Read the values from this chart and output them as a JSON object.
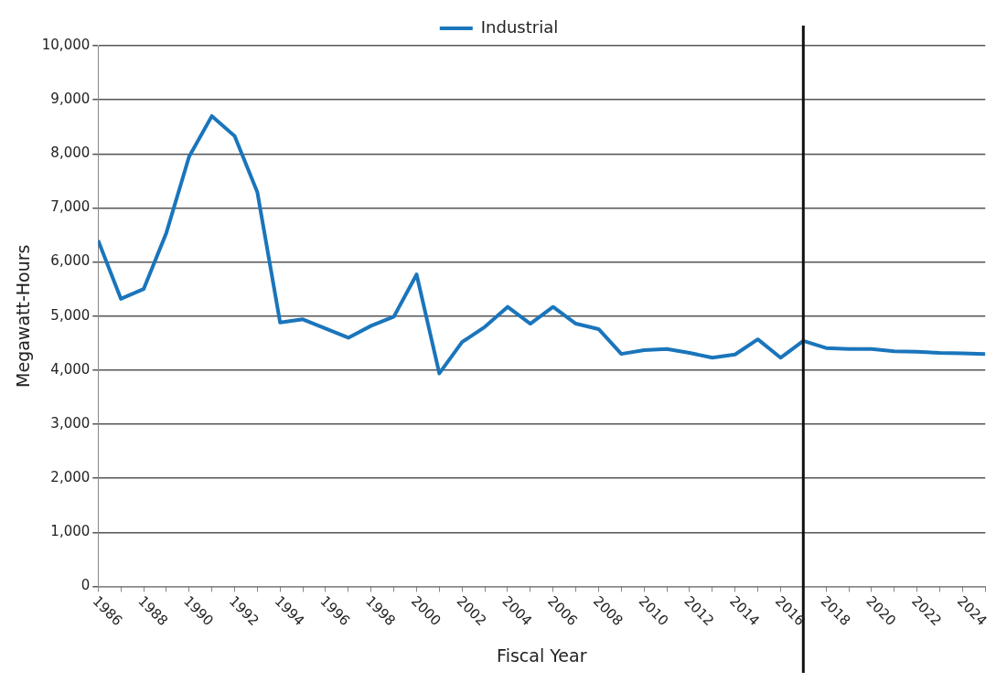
{
  "chart_data": {
    "type": "line",
    "xlabel": "Fiscal Year",
    "ylabel": "Megawatt-Hours",
    "x": [
      1986,
      1987,
      1988,
      1989,
      1990,
      1991,
      1992,
      1993,
      1994,
      1995,
      1996,
      1997,
      1998,
      1999,
      2000,
      2001,
      2002,
      2003,
      2004,
      2005,
      2006,
      2007,
      2008,
      2009,
      2010,
      2011,
      2012,
      2013,
      2014,
      2015,
      2016,
      2017,
      2018,
      2019,
      2020,
      2021,
      2022,
      2023,
      2024,
      2025
    ],
    "series": [
      {
        "name": "Industrial",
        "color": "#1a75bb",
        "values": [
          6400,
          5320,
          5500,
          6540,
          7950,
          8700,
          8330,
          7290,
          4880,
          4940,
          4770,
          4600,
          4820,
          4990,
          5770,
          3940,
          4520,
          4800,
          5170,
          4860,
          5170,
          4860,
          4760,
          4300,
          4370,
          4390,
          4320,
          4230,
          4290,
          4570,
          4230,
          4540,
          4410,
          4390,
          4390,
          4350,
          4340,
          4320,
          4310,
          4300
        ]
      }
    ],
    "xlim": [
      1986,
      2025
    ],
    "xticks": [
      1986,
      {
        "value": 1987,
        "label": null
      },
      1988,
      {
        "value": 1989,
        "label": null
      },
      1990,
      {
        "value": 1991,
        "label": null
      },
      1992,
      {
        "value": 1993,
        "label": null
      },
      1994,
      {
        "value": 1995,
        "label": null
      },
      1996,
      {
        "value": 1997,
        "label": null
      },
      1998,
      {
        "value": 1999,
        "label": null
      },
      2000,
      {
        "value": 2001,
        "label": null
      },
      2002,
      {
        "value": 2003,
        "label": null
      },
      2004,
      {
        "value": 2005,
        "label": null
      },
      2006,
      {
        "value": 2007,
        "label": null
      },
      2008,
      {
        "value": 2009,
        "label": null
      },
      2010,
      {
        "value": 2011,
        "label": null
      },
      2012,
      {
        "value": 2013,
        "label": null
      },
      2014,
      {
        "value": 2015,
        "label": null
      },
      2016,
      {
        "value": 2017,
        "label": null
      },
      2018,
      {
        "value": 2019,
        "label": null
      },
      2020,
      {
        "value": 2021,
        "label": null
      },
      2022,
      {
        "value": 2023,
        "label": null
      },
      2024,
      {
        "value": 2025,
        "label": null
      }
    ],
    "ylim": [
      0,
      10000
    ],
    "yticks": [
      0,
      {
        "value": 1000,
        "label": "1,000"
      },
      {
        "value": 2000,
        "label": "2,000"
      },
      {
        "value": 3000,
        "label": "3,000"
      },
      {
        "value": 4000,
        "label": "4,000"
      },
      {
        "value": 5000,
        "label": "5,000"
      },
      {
        "value": 6000,
        "label": "6,000"
      },
      {
        "value": 7000,
        "label": "7,000"
      },
      {
        "value": 8000,
        "label": "8,000"
      },
      {
        "value": 9000,
        "label": "9,000"
      },
      {
        "value": 10000,
        "label": "10,000"
      }
    ],
    "ref_lines": [
      {
        "axis": "x",
        "value": 2017,
        "color": "#111111"
      }
    ],
    "grid": "y",
    "legend": "top",
    "marker": "none",
    "line_style": "solid"
  }
}
